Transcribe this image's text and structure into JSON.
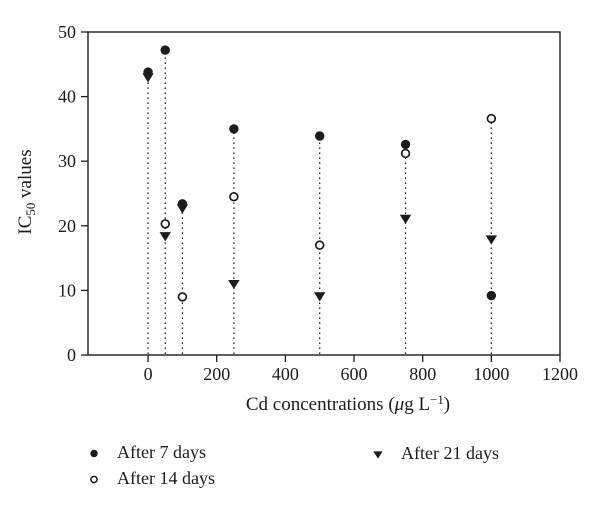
{
  "figure": {
    "background": "#ffffff",
    "ink_color": "#1c1c1c"
  },
  "chart_data": {
    "type": "scatter",
    "subtype": "stem-scatter",
    "title": "",
    "xlabel": {
      "prefix": "Cd concentrations (",
      "mu": "μ",
      "mid": "g L",
      "sup": "−1",
      "suffix": ")"
    },
    "ylabel": {
      "prefix": "IC",
      "sub": "50",
      "suffix": " values"
    },
    "xlim": [
      -175,
      1200
    ],
    "ylim": [
      0,
      50
    ],
    "x_ticks": [
      0,
      200,
      400,
      600,
      800,
      1000,
      1200
    ],
    "y_ticks": [
      0,
      10,
      20,
      30,
      40,
      50
    ],
    "grid": false,
    "stem_lines": "dotted vertical stems from baseline to highest marker at each x",
    "legend_position": "below-axis",
    "x_values": [
      0,
      50,
      100,
      250,
      500,
      750,
      1000
    ],
    "series": [
      {
        "name": "After 7 days",
        "marker": "filled-circle",
        "color": "#1c1c1c",
        "points": [
          [
            0,
            43.8
          ],
          [
            50,
            47.2
          ],
          [
            100,
            23.4
          ],
          [
            250,
            35
          ],
          [
            500,
            33.9
          ],
          [
            750,
            32.6
          ],
          [
            1000,
            9.2
          ]
        ]
      },
      {
        "name": "After 14 days",
        "marker": "open-circle",
        "color": "#1c1c1c",
        "points": [
          [
            50,
            20.3
          ],
          [
            100,
            9
          ],
          [
            250,
            24.5
          ],
          [
            500,
            17
          ],
          [
            750,
            31.2
          ],
          [
            1000,
            36.6
          ]
        ]
      },
      {
        "name": "After 21 days",
        "marker": "filled-triangle-down",
        "color": "#1c1c1c",
        "points": [
          [
            0,
            42.9
          ],
          [
            50,
            18.3
          ],
          [
            100,
            22.6
          ],
          [
            250,
            10.9
          ],
          [
            500,
            9
          ],
          [
            750,
            21
          ],
          [
            1000,
            17.8
          ]
        ]
      }
    ]
  }
}
